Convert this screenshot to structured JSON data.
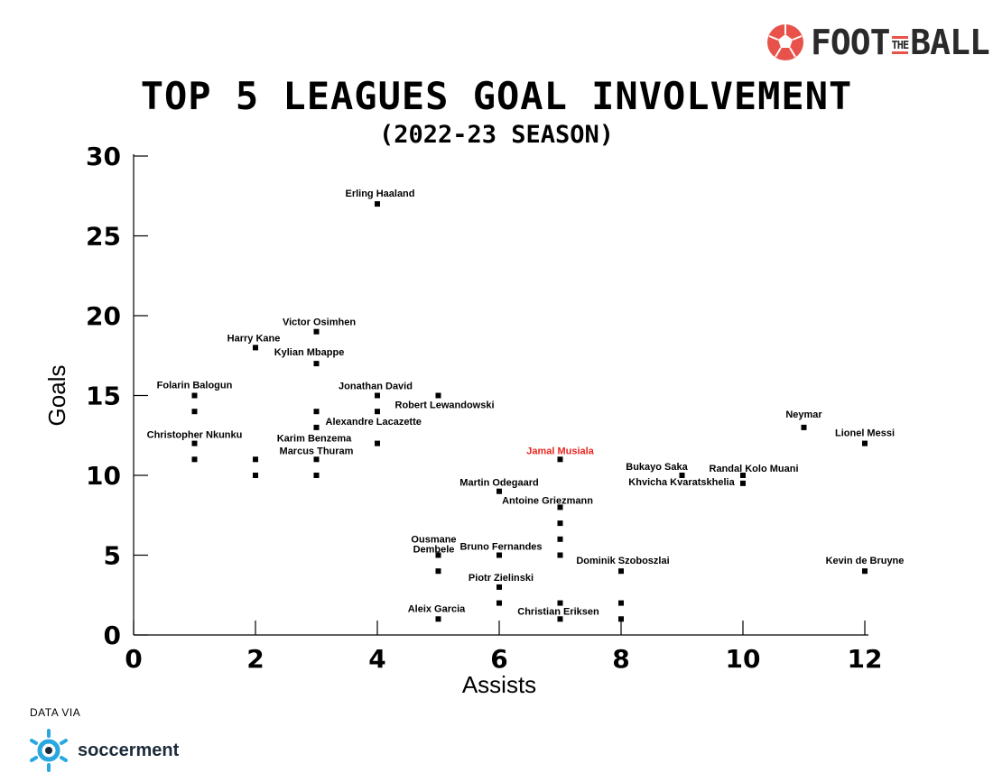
{
  "brand": {
    "name_left": "FOOT",
    "name_mid": "THE",
    "name_right": "BALL",
    "accent_color": "#e8524a",
    "icon": "football-icon"
  },
  "chart_data": {
    "type": "scatter",
    "title": "TOP 5 LEAGUES GOAL INVOLVEMENT",
    "subtitle": "(2022-23 SEASON)",
    "xlabel": "Assists",
    "ylabel": "Goals",
    "xlim": [
      0,
      12
    ],
    "ylim": [
      0,
      30
    ],
    "xticks": [
      0,
      2,
      4,
      6,
      8,
      10,
      12
    ],
    "yticks": [
      0,
      5,
      10,
      15,
      20,
      25,
      30
    ],
    "grid": false,
    "highlight_color": "#e8251f",
    "default_color": "#000000",
    "points": [
      {
        "label": "Erling Haaland",
        "x": 4,
        "y": 27
      },
      {
        "label": "Victor Osimhen",
        "x": 3,
        "y": 19
      },
      {
        "label": "Harry Kane",
        "x": 2,
        "y": 18
      },
      {
        "label": "Kylian Mbappe",
        "x": 3,
        "y": 17
      },
      {
        "label": "Folarin Balogun",
        "x": 1,
        "y": 15
      },
      {
        "label": "Jonathan David",
        "x": 4,
        "y": 15
      },
      {
        "label": "Robert Lewandowski",
        "x": 5,
        "y": 15
      },
      {
        "label": "",
        "x": 1,
        "y": 14
      },
      {
        "label": "",
        "x": 3,
        "y": 14
      },
      {
        "label": "",
        "x": 4,
        "y": 14
      },
      {
        "label": "Alexandre Lacazette",
        "x": 3,
        "y": 13
      },
      {
        "label": "Neymar",
        "x": 11,
        "y": 13
      },
      {
        "label": "Christopher Nkunku",
        "x": 1,
        "y": 12
      },
      {
        "label": "Karim Benzema",
        "x": 4,
        "y": 12
      },
      {
        "label": "Lionel Messi",
        "x": 12,
        "y": 12
      },
      {
        "label": "",
        "x": 1,
        "y": 11
      },
      {
        "label": "",
        "x": 2,
        "y": 11
      },
      {
        "label": "Marcus Thuram",
        "x": 3,
        "y": 11
      },
      {
        "label": "Jamal Musiala",
        "x": 7,
        "y": 11,
        "highlight": true
      },
      {
        "label": "",
        "x": 2,
        "y": 10
      },
      {
        "label": "",
        "x": 3,
        "y": 10
      },
      {
        "label": "Bukayo Saka",
        "x": 9,
        "y": 10
      },
      {
        "label": "Randal Kolo Muani",
        "x": 10,
        "y": 10
      },
      {
        "label": "Martin Odegaard",
        "x": 6,
        "y": 9
      },
      {
        "label": "Khvicha Kvaratskhelia",
        "x": 10,
        "y": 9.5
      },
      {
        "label": "Antoine Griezmann",
        "x": 7,
        "y": 8
      },
      {
        "label": "",
        "x": 7,
        "y": 7
      },
      {
        "label": "",
        "x": 7,
        "y": 6
      },
      {
        "label": "Ousmane Dembele",
        "x": 5,
        "y": 5
      },
      {
        "label": "Bruno Fernandes",
        "x": 6,
        "y": 5
      },
      {
        "label": "",
        "x": 7,
        "y": 5
      },
      {
        "label": "",
        "x": 5,
        "y": 4
      },
      {
        "label": "Dominik Szoboszlai",
        "x": 8,
        "y": 4
      },
      {
        "label": "Kevin de Bruyne",
        "x": 12,
        "y": 4
      },
      {
        "label": "Piotr Zielinski",
        "x": 6,
        "y": 3
      },
      {
        "label": "",
        "x": 6,
        "y": 2
      },
      {
        "label": "",
        "x": 7,
        "y": 2
      },
      {
        "label": "",
        "x": 8,
        "y": 2
      },
      {
        "label": "Aleix Garcia",
        "x": 5,
        "y": 1
      },
      {
        "label": "Christian Eriksen",
        "x": 7,
        "y": 1
      },
      {
        "label": "",
        "x": 8,
        "y": 1
      }
    ]
  },
  "source": {
    "caption": "DATA VIA",
    "name": "soccerment",
    "icon": "soccerment-logo-icon",
    "color": "#29a8e0"
  }
}
